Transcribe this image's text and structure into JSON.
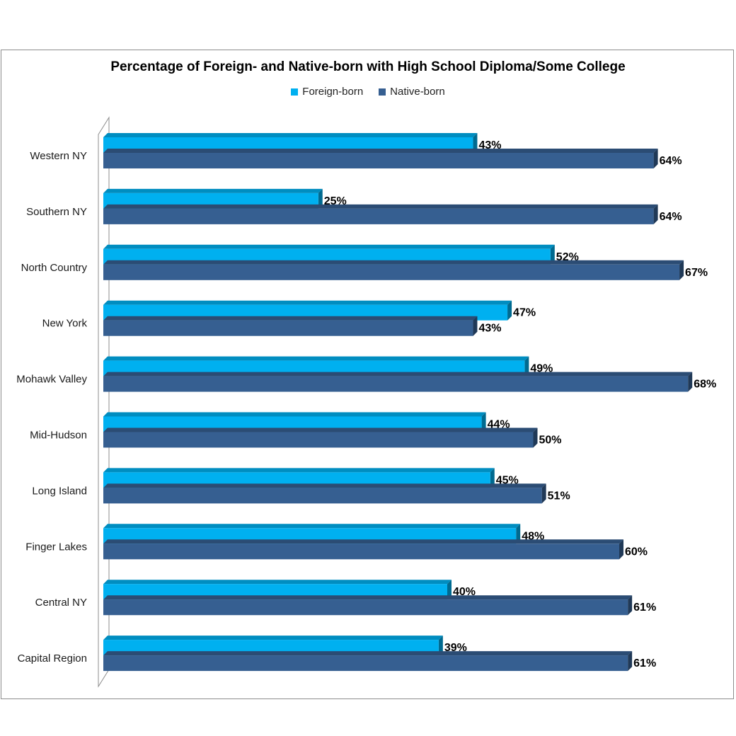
{
  "chart_data": {
    "type": "bar",
    "orientation": "horizontal",
    "title": "Percentage of Foreign- and Native-born with High School Diploma/Some College",
    "categories": [
      "Western NY",
      "Southern NY",
      "North Country",
      "New York",
      "Mohawk Valley",
      "Mid-Hudson",
      "Long Island",
      "Finger Lakes",
      "Central NY",
      "Capital Region"
    ],
    "series": [
      {
        "name": "Foreign-born",
        "values": [
          43,
          25,
          52,
          47,
          49,
          44,
          45,
          48,
          40,
          39
        ],
        "labels": [
          "43%",
          "25%",
          "52%",
          "47%",
          "49%",
          "44%",
          "45%",
          "48%",
          "40%",
          "39%"
        ],
        "color": "#00b0f0"
      },
      {
        "name": "Native-born",
        "values": [
          64,
          64,
          67,
          43,
          68,
          50,
          51,
          60,
          61,
          61
        ],
        "labels": [
          "64%",
          "64%",
          "67%",
          "43%",
          "68%",
          "50%",
          "51%",
          "60%",
          "61%",
          "61%"
        ],
        "color": "#365f91"
      }
    ],
    "xlim": [
      0,
      70
    ],
    "legend_position": "top",
    "grid": false
  }
}
